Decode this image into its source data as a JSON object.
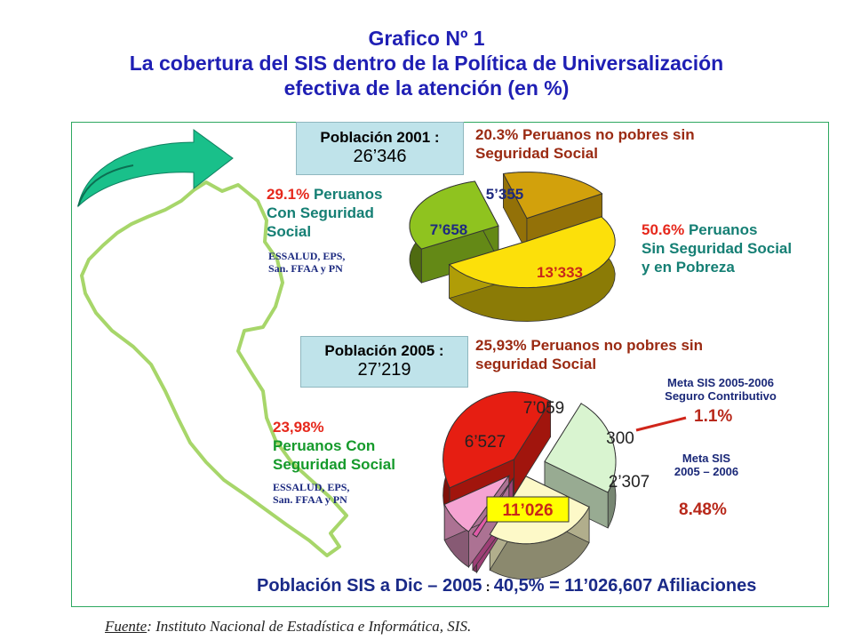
{
  "title": {
    "line1": "Grafico Nº 1",
    "line2": "La cobertura del SIS dentro de la Política de Universalización",
    "line3": "efectiva de la atención (en %)"
  },
  "pop2001": {
    "label": "Población 2001 :",
    "value": "26’346"
  },
  "pop2005": {
    "label": "Población 2005 :",
    "value": "27’219"
  },
  "labels2001": {
    "nonpoor_pct": "20.3%",
    "nonpoor_text1": "Peruanos no pobres sin",
    "nonpoor_text2": "Seguridad Social",
    "withss_pct": "29.1%",
    "withss_text1": "Peruanos",
    "withss_text2": "Con Seguridad",
    "withss_text3": "Social",
    "withss_detail1": "ESSALUD, EPS,",
    "withss_detail2": "San. FFAA y PN",
    "poor_pct": "50.6%",
    "poor_text1": "Peruanos",
    "poor_text2": "Sin Seguridad Social",
    "poor_text3": "y en Pobreza"
  },
  "labels2005": {
    "nonpoor_text1": "25,93% Peruanos no pobres sin",
    "nonpoor_text2": "seguridad Social",
    "withss_pct": "23,98%",
    "withss_text1": "Peruanos Con",
    "withss_text2": "Seguridad Social",
    "withss_detail1": "ESSALUD, EPS,",
    "withss_detail2": "San. FFAA y PN",
    "meta1_line1": "Meta SIS  2005-2006",
    "meta1_line2": "Seguro Contributivo",
    "meta1_pct": "1.1%",
    "meta2_line1": "Meta  SIS",
    "meta2_line2": "2005 – 2006",
    "meta2_pct": "8.48%"
  },
  "bottom": {
    "part1": "Población SIS a Dic – 2005",
    "sep": " : ",
    "part2": "40,5% = 11’026,607 Afiliaciones"
  },
  "source": {
    "label": "Fuente",
    "text": ": Instituto Nacional de Estadística e Informática, SIS."
  },
  "chart_data": [
    {
      "type": "pie",
      "title": "Población 2001 : 26’346",
      "categories": [
        "Peruanos Con Seguridad Social",
        "Peruanos no pobres sin Seguridad Social",
        "Peruanos Sin Seguridad Social y en Pobreza"
      ],
      "values": [
        7658,
        5355,
        13333
      ],
      "value_labels": [
        "7’658",
        "5’355",
        "13’333"
      ],
      "percent_labels": [
        "29.1%",
        "20.3%",
        "50.6%"
      ],
      "colors": [
        "#8fc31f",
        "#d2a10c",
        "#fce00a"
      ]
    },
    {
      "type": "pie",
      "title": "Población 2005 : 27’219",
      "categories": [
        "Población SIS",
        "Peruanos Con Seguridad Social",
        "Peruanos no pobres sin seguridad Social",
        "Meta SIS 2005-2006 Seguro Contributivo",
        "Meta SIS 2005 – 2006"
      ],
      "values": [
        11026,
        6527,
        7059,
        300,
        2307
      ],
      "value_labels": [
        "11’026",
        "6’527",
        "7’059",
        "300",
        "2’307"
      ],
      "percent_labels": [
        "40,5%",
        "23,98%",
        "25,93%",
        "1.1%",
        "8.48%"
      ],
      "colors": [
        "#e61e12",
        "#d9f4d0",
        "#fdf9c8",
        "#e05aa8",
        "#f5a3d2"
      ]
    }
  ]
}
